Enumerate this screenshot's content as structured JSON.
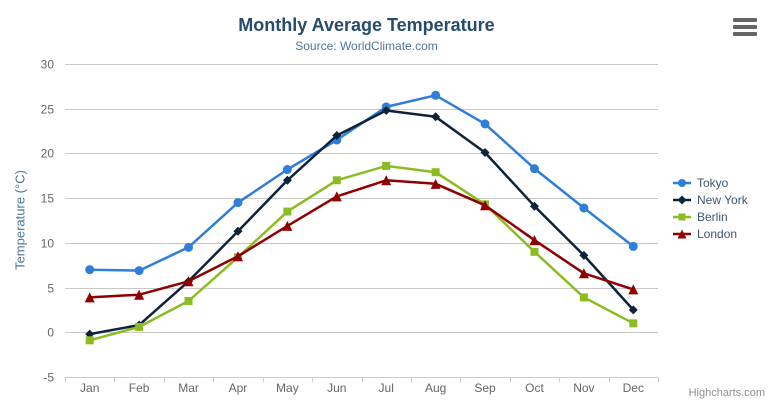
{
  "chart_data": {
    "type": "line",
    "title": "Monthly Average Temperature",
    "subtitle": "Source: WorldClimate.com",
    "categories": [
      "Jan",
      "Feb",
      "Mar",
      "Apr",
      "May",
      "Jun",
      "Jul",
      "Aug",
      "Sep",
      "Oct",
      "Nov",
      "Dec"
    ],
    "series": [
      {
        "name": "Tokyo",
        "color": "#2f7ed8",
        "marker": "circle",
        "values": [
          7.0,
          6.9,
          9.5,
          14.5,
          18.2,
          21.5,
          25.2,
          26.5,
          23.3,
          18.3,
          13.9,
          9.6
        ]
      },
      {
        "name": "New York",
        "color": "#0d233a",
        "marker": "diamond",
        "values": [
          -0.2,
          0.8,
          5.7,
          11.3,
          17.0,
          22.0,
          24.8,
          24.1,
          20.1,
          14.1,
          8.6,
          2.5
        ]
      },
      {
        "name": "Berlin",
        "color": "#8bbc21",
        "marker": "square",
        "values": [
          -0.9,
          0.6,
          3.5,
          8.4,
          13.5,
          17.0,
          18.6,
          17.9,
          14.3,
          9.0,
          3.9,
          1.0
        ]
      },
      {
        "name": "London",
        "color": "#910000",
        "marker": "triangle",
        "values": [
          3.9,
          4.2,
          5.7,
          8.5,
          11.9,
          15.2,
          17.0,
          16.6,
          14.2,
          10.3,
          6.6,
          4.8
        ]
      }
    ],
    "xlabel": "",
    "ylabel": "Temperature (°C)",
    "ylim": [
      -5,
      30
    ],
    "ytick_step": 5,
    "grid": true,
    "legend_position": "right",
    "colors": {
      "grid": "#C8C8C8",
      "axis_line": "#C0D0E0",
      "axis_labels": "#666666",
      "title": "#274b6d",
      "subtitle": "#4d759e",
      "legend_text": "#3E576F",
      "credits": "#909090"
    }
  },
  "icons": {
    "export_menu": "hamburger-menu-icon"
  },
  "credits": {
    "label": "Highcharts.com"
  }
}
